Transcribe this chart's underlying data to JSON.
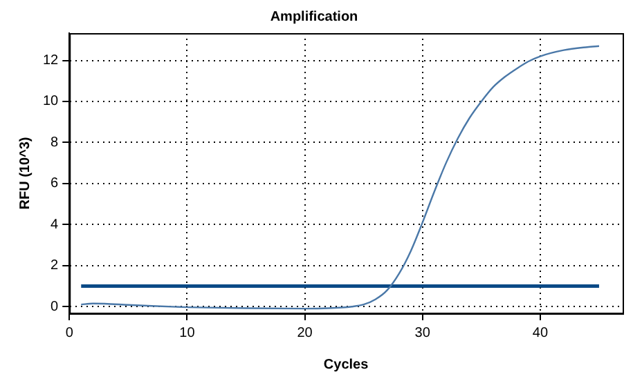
{
  "chart_data": {
    "type": "line",
    "title": "Amplification",
    "xlabel": "Cycles",
    "ylabel": "RFU (10^3)",
    "xlim": [
      0,
      47
    ],
    "xticks": [
      0,
      10,
      20,
      30,
      40
    ],
    "ylim": [
      -0.33,
      13.33
    ],
    "yticks": [
      0,
      2,
      4,
      6,
      8,
      10,
      12
    ],
    "grid": true,
    "legend": false,
    "marker": "none",
    "line_style": "solid",
    "series": [
      {
        "color": "#4a78a8",
        "x": [
          1,
          2,
          3,
          5,
          7,
          10,
          15,
          20,
          22,
          24,
          25,
          26,
          27,
          28,
          29,
          30,
          31,
          32,
          33,
          34,
          35,
          36,
          37,
          38,
          39,
          40,
          42,
          44,
          45
        ],
        "values": [
          0.1,
          0.15,
          0.14,
          0.08,
          0.03,
          -0.03,
          -0.08,
          -0.1,
          -0.08,
          0.0,
          0.1,
          0.35,
          0.8,
          1.6,
          2.7,
          4.1,
          5.6,
          7.0,
          8.2,
          9.2,
          10.0,
          10.7,
          11.2,
          11.6,
          11.95,
          12.2,
          12.5,
          12.65,
          12.7
        ]
      },
      {
        "color": "#0b4a86",
        "x": [
          1,
          45
        ],
        "values": [
          1,
          1
        ]
      }
    ]
  }
}
